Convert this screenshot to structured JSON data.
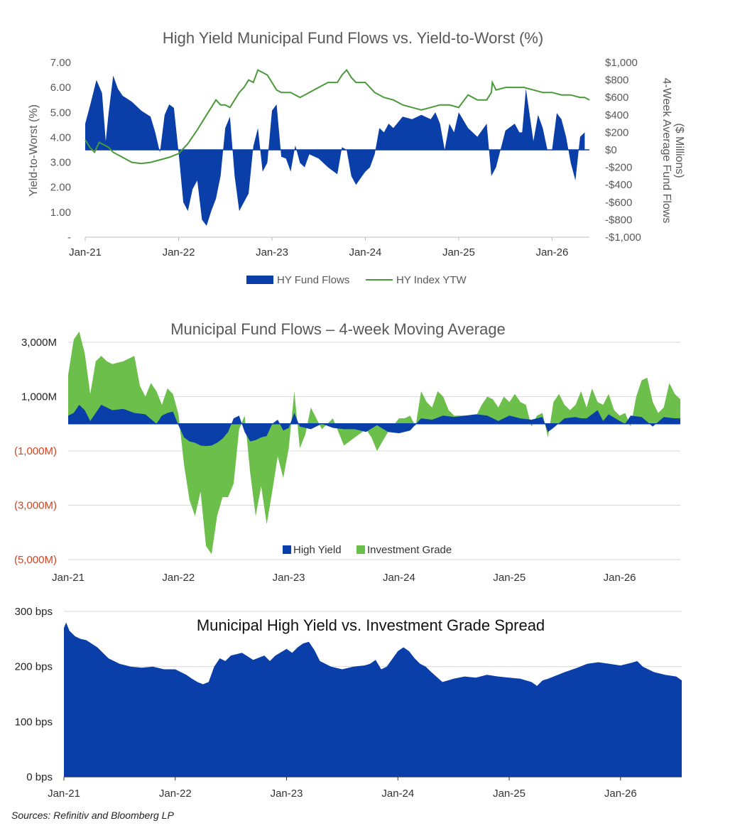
{
  "colors": {
    "hy_blue": "#0a3ea8",
    "ig_green": "#6cbf4b",
    "ytw_green": "#4a9a3a",
    "negative_label": "#d9411e",
    "grid": "#d9d9d9",
    "text": "#595959"
  },
  "source_note": "Sources:  Refinitiv and Bloomberg LP",
  "chart_data": [
    {
      "type": "area",
      "title": "High Yield Municipal Fund Flows vs. Yield-to-Worst (%)",
      "ylabel": "Yield-to-Worst (%)",
      "y2label_line1": "4-Week Average Fund Flows",
      "y2label_line2": "($ Millions)",
      "x_ticks": [
        "Jan-21",
        "Jan-22",
        "Jan-23",
        "Jan-24",
        "Jan-25",
        "Jan-26"
      ],
      "x_range": [
        2021.0,
        2026.4
      ],
      "y_ticks": [
        "7.00",
        "6.00",
        "5.00",
        "4.00",
        "3.00",
        "2.00",
        "1.00",
        "-"
      ],
      "ylim": [
        0,
        7
      ],
      "y2_ticks": [
        "$1,000",
        "$800",
        "$600",
        "$400",
        "$200",
        "$0",
        "-$200",
        "-$400",
        "-$600",
        "-$800",
        "-$1,000"
      ],
      "y2lim": [
        -1000,
        1000
      ],
      "legend": [
        "HY Fund Flows",
        "HY Index YTW"
      ],
      "series": [
        {
          "name": "HY Fund Flows",
          "axis": "right",
          "x": [
            2021.0,
            2021.05,
            2021.12,
            2021.18,
            2021.22,
            2021.25,
            2021.3,
            2021.35,
            2021.4,
            2021.5,
            2021.6,
            2021.7,
            2021.75,
            2021.8,
            2021.85,
            2021.9,
            2021.95,
            2022.0,
            2022.05,
            2022.1,
            2022.15,
            2022.2,
            2022.25,
            2022.3,
            2022.35,
            2022.4,
            2022.45,
            2022.5,
            2022.55,
            2022.6,
            2022.65,
            2022.7,
            2022.75,
            2022.8,
            2022.85,
            2022.9,
            2022.95,
            2023.0,
            2023.05,
            2023.1,
            2023.15,
            2023.2,
            2023.25,
            2023.3,
            2023.35,
            2023.4,
            2023.5,
            2023.6,
            2023.7,
            2023.75,
            2023.8,
            2023.85,
            2023.9,
            2024.0,
            2024.05,
            2024.1,
            2024.15,
            2024.2,
            2024.25,
            2024.3,
            2024.4,
            2024.5,
            2024.6,
            2024.7,
            2024.75,
            2024.8,
            2024.85,
            2024.9,
            2024.95,
            2025.0,
            2025.1,
            2025.2,
            2025.3,
            2025.35,
            2025.4,
            2025.5,
            2025.6,
            2025.65,
            2025.68,
            2025.72,
            2025.8,
            2025.85,
            2025.9,
            2025.95,
            2026.0,
            2026.05,
            2026.1,
            2026.15,
            2026.2,
            2026.25,
            2026.3,
            2026.35
          ],
          "values": [
            300,
            500,
            800,
            650,
            100,
            420,
            850,
            700,
            620,
            550,
            450,
            380,
            200,
            -30,
            400,
            520,
            480,
            -30,
            -600,
            -700,
            -450,
            -350,
            -800,
            -870,
            -700,
            -560,
            -300,
            250,
            380,
            -300,
            -700,
            -600,
            -500,
            40,
            250,
            -250,
            -150,
            450,
            520,
            -80,
            -100,
            -250,
            50,
            -150,
            -200,
            -50,
            -100,
            -200,
            -280,
            30,
            0,
            -300,
            -400,
            -250,
            -200,
            -50,
            250,
            200,
            300,
            250,
            380,
            350,
            400,
            350,
            430,
            300,
            0,
            300,
            200,
            430,
            250,
            150,
            300,
            -300,
            -200,
            220,
            300,
            200,
            200,
            700,
            100,
            400,
            250,
            0,
            0,
            420,
            350,
            150,
            -150,
            -350,
            150,
            200
          ]
        },
        {
          "name": "HY Index YTW",
          "axis": "left",
          "x": [
            2021.0,
            2021.05,
            2021.1,
            2021.15,
            2021.2,
            2021.25,
            2021.3,
            2021.4,
            2021.5,
            2021.6,
            2021.7,
            2021.8,
            2021.9,
            2022.0,
            2022.1,
            2022.2,
            2022.3,
            2022.35,
            2022.4,
            2022.45,
            2022.5,
            2022.55,
            2022.6,
            2022.65,
            2022.7,
            2022.75,
            2022.8,
            2022.85,
            2022.9,
            2022.95,
            2023.0,
            2023.05,
            2023.1,
            2023.2,
            2023.3,
            2023.4,
            2023.5,
            2023.6,
            2023.7,
            2023.75,
            2023.8,
            2023.85,
            2023.9,
            2024.0,
            2024.1,
            2024.2,
            2024.3,
            2024.4,
            2024.5,
            2024.6,
            2024.7,
            2024.8,
            2024.9,
            2025.0,
            2025.1,
            2025.2,
            2025.3,
            2025.35,
            2025.36,
            2025.4,
            2025.5,
            2025.6,
            2025.7,
            2025.8,
            2025.9,
            2026.0,
            2026.1,
            2026.2,
            2026.3,
            2026.35,
            2026.4
          ],
          "values": [
            3.9,
            3.6,
            3.4,
            3.8,
            3.7,
            3.6,
            3.4,
            3.2,
            3.0,
            2.95,
            3.0,
            3.1,
            3.2,
            3.35,
            3.75,
            4.3,
            4.9,
            5.2,
            5.5,
            5.3,
            5.3,
            5.2,
            5.5,
            5.8,
            6.0,
            6.3,
            6.2,
            6.7,
            6.6,
            6.5,
            6.2,
            5.9,
            5.8,
            5.8,
            5.6,
            5.8,
            6.0,
            6.2,
            6.2,
            6.5,
            6.7,
            6.4,
            6.2,
            6.2,
            5.8,
            5.6,
            5.5,
            5.3,
            5.2,
            5.1,
            5.2,
            5.3,
            5.3,
            5.2,
            5.7,
            5.5,
            5.5,
            5.8,
            6.2,
            5.9,
            6.0,
            6.0,
            6.0,
            5.9,
            5.8,
            5.8,
            5.7,
            5.7,
            5.6,
            5.6,
            5.5
          ]
        }
      ]
    },
    {
      "type": "area",
      "title": "Municipal Fund Flows  –  4-week Moving Average",
      "x_ticks": [
        "Jan-21",
        "Jan-22",
        "Jan-23",
        "Jan-24",
        "Jan-25",
        "Jan-26"
      ],
      "x_range": [
        2021.0,
        2026.55
      ],
      "y_ticks": [
        "3,000M",
        "1,000M",
        "(1,000M)",
        "(3,000M)",
        "(5,000M)"
      ],
      "ylim": [
        -5000,
        3000
      ],
      "legend": [
        "High Yield",
        "Investment Grade"
      ],
      "series": [
        {
          "name": "Investment Grade",
          "x": [
            2021.0,
            2021.05,
            2021.1,
            2021.15,
            2021.2,
            2021.25,
            2021.3,
            2021.35,
            2021.4,
            2021.5,
            2021.6,
            2021.65,
            2021.7,
            2021.75,
            2021.8,
            2021.85,
            2021.9,
            2021.95,
            2022.0,
            2022.05,
            2022.1,
            2022.15,
            2022.2,
            2022.25,
            2022.3,
            2022.35,
            2022.4,
            2022.45,
            2022.5,
            2022.55,
            2022.6,
            2022.65,
            2022.7,
            2022.75,
            2022.8,
            2022.85,
            2022.9,
            2022.95,
            2023.0,
            2023.05,
            2023.1,
            2023.15,
            2023.2,
            2023.3,
            2023.4,
            2023.5,
            2023.6,
            2023.7,
            2023.75,
            2023.8,
            2023.9,
            2024.0,
            2024.05,
            2024.1,
            2024.15,
            2024.2,
            2024.25,
            2024.3,
            2024.35,
            2024.4,
            2024.45,
            2024.5,
            2024.6,
            2024.7,
            2024.75,
            2024.8,
            2024.85,
            2024.9,
            2024.95,
            2025.0,
            2025.05,
            2025.1,
            2025.15,
            2025.2,
            2025.25,
            2025.3,
            2025.35,
            2025.4,
            2025.45,
            2025.5,
            2025.55,
            2025.6,
            2025.65,
            2025.7,
            2025.75,
            2025.8,
            2025.85,
            2025.9,
            2025.95,
            2026.0,
            2026.05,
            2026.1,
            2026.15,
            2026.2,
            2026.25,
            2026.3,
            2026.35,
            2026.4,
            2026.45,
            2026.5,
            2026.55
          ],
          "values": [
            1800,
            3100,
            3400,
            2600,
            1100,
            2300,
            2500,
            2300,
            2200,
            2300,
            2500,
            1400,
            1000,
            1500,
            1200,
            700,
            1300,
            1100,
            350,
            -1500,
            -2800,
            -3400,
            -2500,
            -4500,
            -4800,
            -3400,
            -2700,
            -2700,
            -2200,
            -200,
            300,
            -1800,
            -3400,
            -2300,
            -3700,
            -2500,
            -1200,
            -2000,
            -900,
            1200,
            -900,
            -400,
            600,
            -200,
            200,
            -800,
            -500,
            -200,
            -500,
            -1000,
            -300,
            200,
            200,
            300,
            -100,
            1200,
            800,
            600,
            1200,
            1000,
            500,
            300,
            300,
            300,
            700,
            1000,
            900,
            600,
            1000,
            800,
            1100,
            800,
            700,
            -100,
            300,
            400,
            -500,
            800,
            1100,
            700,
            500,
            700,
            1200,
            600,
            1300,
            800,
            700,
            1100,
            500,
            300,
            400,
            -100,
            1000,
            1600,
            1700,
            800,
            400,
            600,
            1500,
            1100,
            900
          ]
        },
        {
          "name": "High Yield",
          "x": [
            2021.0,
            2021.05,
            2021.1,
            2021.15,
            2021.2,
            2021.25,
            2021.3,
            2021.35,
            2021.4,
            2021.5,
            2021.6,
            2021.7,
            2021.8,
            2021.85,
            2021.9,
            2021.95,
            2022.0,
            2022.05,
            2022.1,
            2022.15,
            2022.2,
            2022.25,
            2022.3,
            2022.35,
            2022.4,
            2022.45,
            2022.5,
            2022.55,
            2022.6,
            2022.65,
            2022.7,
            2022.75,
            2022.8,
            2022.85,
            2022.9,
            2022.95,
            2023.0,
            2023.05,
            2023.1,
            2023.2,
            2023.3,
            2023.4,
            2023.5,
            2023.6,
            2023.7,
            2023.8,
            2023.9,
            2024.0,
            2024.1,
            2024.2,
            2024.3,
            2024.4,
            2024.5,
            2024.6,
            2024.7,
            2024.8,
            2024.9,
            2025.0,
            2025.1,
            2025.2,
            2025.3,
            2025.35,
            2025.4,
            2025.5,
            2025.6,
            2025.65,
            2025.7,
            2025.8,
            2025.85,
            2025.9,
            2026.0,
            2026.05,
            2026.1,
            2026.2,
            2026.3,
            2026.4,
            2026.5,
            2026.55
          ],
          "values": [
            300,
            400,
            700,
            500,
            100,
            400,
            700,
            600,
            500,
            550,
            400,
            350,
            0,
            300,
            400,
            450,
            -50,
            -500,
            -650,
            -700,
            -800,
            -820,
            -800,
            -700,
            -550,
            -300,
            200,
            300,
            -300,
            -650,
            -600,
            -500,
            -450,
            0,
            150,
            -250,
            -150,
            400,
            -100,
            -200,
            0,
            -150,
            -200,
            -200,
            -300,
            -50,
            -300,
            -350,
            -250,
            200,
            150,
            300,
            250,
            300,
            350,
            300,
            100,
            300,
            200,
            150,
            250,
            -300,
            -150,
            200,
            250,
            200,
            200,
            500,
            100,
            350,
            100,
            0,
            300,
            250,
            -100,
            250,
            200,
            200
          ]
        }
      ]
    },
    {
      "type": "area",
      "title": "Municipal High Yield vs. Investment Grade Spread",
      "x_ticks": [
        "Jan-21",
        "Jan-22",
        "Jan-23",
        "Jan-24",
        "Jan-25",
        "Jan-26"
      ],
      "x_range": [
        2021.0,
        2026.55
      ],
      "y_ticks": [
        "300 bps",
        "200 bps",
        "100 bps",
        "0 bps"
      ],
      "ylim": [
        0,
        300
      ],
      "series": [
        {
          "name": "Spread",
          "x": [
            2021.0,
            2021.02,
            2021.05,
            2021.1,
            2021.15,
            2021.2,
            2021.3,
            2021.4,
            2021.5,
            2021.6,
            2021.7,
            2021.8,
            2021.9,
            2022.0,
            2022.1,
            2022.15,
            2022.2,
            2022.25,
            2022.3,
            2022.35,
            2022.4,
            2022.45,
            2022.5,
            2022.6,
            2022.7,
            2022.8,
            2022.85,
            2022.9,
            2023.0,
            2023.05,
            2023.1,
            2023.15,
            2023.2,
            2023.25,
            2023.3,
            2023.4,
            2023.5,
            2023.6,
            2023.7,
            2023.75,
            2023.8,
            2023.85,
            2023.9,
            2024.0,
            2024.05,
            2024.1,
            2024.15,
            2024.2,
            2024.25,
            2024.3,
            2024.4,
            2024.5,
            2024.6,
            2024.7,
            2024.8,
            2024.9,
            2025.0,
            2025.1,
            2025.2,
            2025.25,
            2025.3,
            2025.35,
            2025.4,
            2025.5,
            2025.6,
            2025.7,
            2025.8,
            2025.9,
            2026.0,
            2026.1,
            2026.15,
            2026.2,
            2026.3,
            2026.4,
            2026.5,
            2026.55
          ],
          "values": [
            270,
            280,
            265,
            255,
            250,
            248,
            235,
            215,
            205,
            200,
            198,
            200,
            195,
            195,
            185,
            178,
            172,
            168,
            172,
            200,
            215,
            210,
            220,
            225,
            212,
            220,
            210,
            220,
            232,
            225,
            235,
            242,
            245,
            230,
            210,
            200,
            195,
            200,
            202,
            205,
            212,
            195,
            200,
            228,
            235,
            228,
            215,
            205,
            200,
            190,
            172,
            178,
            182,
            180,
            185,
            182,
            180,
            178,
            172,
            165,
            175,
            178,
            182,
            190,
            197,
            205,
            208,
            205,
            202,
            207,
            210,
            200,
            190,
            185,
            182,
            175
          ]
        }
      ]
    }
  ]
}
